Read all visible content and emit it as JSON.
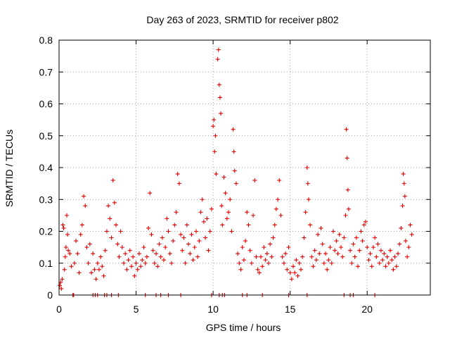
{
  "chart_data": {
    "type": "scatter",
    "title": "Day 263 of 2023, SRMTID for receiver p802",
    "xlabel": "GPS time / hours",
    "ylabel": "SRMTID / TECUs",
    "xlim": [
      0,
      24.1
    ],
    "ylim": [
      0,
      0.8
    ],
    "xticks": [
      0,
      5,
      10,
      15,
      20
    ],
    "xtick_labels": [
      "0",
      "5",
      "10",
      "15",
      "20"
    ],
    "yticks": [
      0,
      0.1,
      0.2,
      0.3,
      0.4,
      0.5,
      0.6,
      0.7,
      0.8
    ],
    "ytick_labels": [
      "0",
      "0.1",
      "0.2",
      "0.3",
      "0.4",
      "0.5",
      "0.6",
      "0.7",
      "0.8"
    ],
    "grid": true,
    "marker": "+",
    "color": "#e00000",
    "series": [
      {
        "name": "SRMTID",
        "points": [
          [
            0.05,
            0.03
          ],
          [
            0.1,
            0.04
          ],
          [
            0.15,
            0.02
          ],
          [
            0.2,
            0.05
          ],
          [
            0.25,
            0.22
          ],
          [
            0.3,
            0.21
          ],
          [
            0.35,
            0.08
          ],
          [
            0.4,
            0.12
          ],
          [
            0.45,
            0.15
          ],
          [
            0.5,
            0.25
          ],
          [
            0.55,
            0.19
          ],
          [
            0.6,
            0.14
          ],
          [
            0.7,
            0.13
          ],
          [
            0.8,
            0.09
          ],
          [
            1.0,
            0.1
          ],
          [
            1.1,
            0.17
          ],
          [
            1.2,
            0.13
          ],
          [
            1.3,
            0.07
          ],
          [
            1.4,
            0.19
          ],
          [
            1.5,
            0.22
          ],
          [
            1.6,
            0.31
          ],
          [
            1.7,
            0.28
          ],
          [
            1.8,
            0.15
          ],
          [
            1.9,
            0.1
          ],
          [
            2.0,
            0.16
          ],
          [
            2.1,
            0.07
          ],
          [
            2.2,
            0.13
          ],
          [
            2.3,
            0.08
          ],
          [
            2.4,
            0.05
          ],
          [
            2.5,
            0.1
          ],
          [
            2.6,
            0.08
          ],
          [
            2.7,
            0.12
          ],
          [
            2.8,
            0.09
          ],
          [
            2.9,
            0.06
          ],
          [
            3.0,
            0.14
          ],
          [
            3.1,
            0.2
          ],
          [
            3.2,
            0.28
          ],
          [
            3.3,
            0.24
          ],
          [
            3.4,
            0.18
          ],
          [
            3.5,
            0.36
          ],
          [
            3.6,
            0.29
          ],
          [
            3.7,
            0.22
          ],
          [
            3.8,
            0.16
          ],
          [
            3.9,
            0.12
          ],
          [
            4.0,
            0.2
          ],
          [
            4.1,
            0.15
          ],
          [
            4.2,
            0.1
          ],
          [
            4.3,
            0.13
          ],
          [
            4.4,
            0.08
          ],
          [
            4.5,
            0.11
          ],
          [
            4.6,
            0.14
          ],
          [
            4.7,
            0.09
          ],
          [
            4.8,
            0.12
          ],
          [
            4.9,
            0.06
          ],
          [
            5.0,
            0.1
          ],
          [
            5.1,
            0.08
          ],
          [
            5.2,
            0.13
          ],
          [
            5.3,
            0.09
          ],
          [
            5.4,
            0.11
          ],
          [
            5.5,
            0.15
          ],
          [
            5.6,
            0.1
          ],
          [
            5.7,
            0.12
          ],
          [
            5.8,
            0.21
          ],
          [
            5.9,
            0.32
          ],
          [
            6.0,
            0.19
          ],
          [
            6.1,
            0.14
          ],
          [
            6.2,
            0.1
          ],
          [
            6.3,
            0.13
          ],
          [
            6.4,
            0.09
          ],
          [
            6.5,
            0.16
          ],
          [
            6.6,
            0.12
          ],
          [
            6.7,
            0.18
          ],
          [
            6.8,
            0.11
          ],
          [
            6.9,
            0.15
          ],
          [
            7.0,
            0.24
          ],
          [
            7.1,
            0.2
          ],
          [
            7.2,
            0.13
          ],
          [
            7.3,
            0.1
          ],
          [
            7.4,
            0.17
          ],
          [
            7.5,
            0.22
          ],
          [
            7.6,
            0.26
          ],
          [
            7.7,
            0.38
          ],
          [
            7.8,
            0.35
          ],
          [
            7.9,
            0.19
          ],
          [
            8.0,
            0.14
          ],
          [
            8.1,
            0.18
          ],
          [
            8.2,
            0.1
          ],
          [
            8.3,
            0.22
          ],
          [
            8.4,
            0.16
          ],
          [
            8.5,
            0.13
          ],
          [
            8.6,
            0.19
          ],
          [
            8.7,
            0.11
          ],
          [
            8.8,
            0.15
          ],
          [
            8.9,
            0.2
          ],
          [
            9.0,
            0.12
          ],
          [
            9.1,
            0.17
          ],
          [
            9.2,
            0.26
          ],
          [
            9.3,
            0.3
          ],
          [
            9.4,
            0.23
          ],
          [
            9.5,
            0.18
          ],
          [
            9.6,
            0.24
          ],
          [
            9.7,
            0.14
          ],
          [
            9.8,
            0.2
          ],
          [
            9.9,
            0.27
          ],
          [
            10.0,
            0.53
          ],
          [
            10.05,
            0.55
          ],
          [
            10.1,
            0.45
          ],
          [
            10.15,
            0.5
          ],
          [
            10.2,
            0.38
          ],
          [
            10.3,
            0.74
          ],
          [
            10.35,
            0.77
          ],
          [
            10.4,
            0.66
          ],
          [
            10.45,
            0.62
          ],
          [
            10.5,
            0.57
          ],
          [
            10.55,
            0.28
          ],
          [
            10.6,
            0.22
          ],
          [
            10.7,
            0.37
          ],
          [
            10.8,
            0.32
          ],
          [
            10.9,
            0.24
          ],
          [
            11.0,
            0.26
          ],
          [
            11.1,
            0.3
          ],
          [
            11.2,
            0.2
          ],
          [
            11.3,
            0.52
          ],
          [
            11.35,
            0.45
          ],
          [
            11.4,
            0.39
          ],
          [
            11.5,
            0.35
          ],
          [
            11.6,
            0.13
          ],
          [
            11.7,
            0.1
          ],
          [
            11.8,
            0.08
          ],
          [
            11.9,
            0.15
          ],
          [
            12.0,
            0.11
          ],
          [
            12.1,
            0.17
          ],
          [
            12.2,
            0.26
          ],
          [
            12.3,
            0.22
          ],
          [
            12.4,
            0.14
          ],
          [
            12.5,
            0.1
          ],
          [
            12.6,
            0.25
          ],
          [
            12.7,
            0.36
          ],
          [
            12.8,
            0.12
          ],
          [
            12.9,
            0.08
          ],
          [
            13.0,
            0.07
          ],
          [
            13.1,
            0.12
          ],
          [
            13.2,
            0.09
          ],
          [
            13.3,
            0.15
          ],
          [
            13.4,
            0.11
          ],
          [
            13.5,
            0.13
          ],
          [
            13.6,
            0.1
          ],
          [
            13.7,
            0.16
          ],
          [
            13.8,
            0.12
          ],
          [
            13.9,
            0.18
          ],
          [
            14.0,
            0.22
          ],
          [
            14.1,
            0.27
          ],
          [
            14.2,
            0.3
          ],
          [
            14.3,
            0.36
          ],
          [
            14.4,
            0.25
          ],
          [
            14.5,
            0.12
          ],
          [
            14.6,
            0.1
          ],
          [
            14.7,
            0.13
          ],
          [
            14.8,
            0.08
          ],
          [
            14.9,
            0.15
          ],
          [
            15.0,
            0.07
          ],
          [
            15.1,
            0.05
          ],
          [
            15.2,
            0.09
          ],
          [
            15.3,
            0.07
          ],
          [
            15.4,
            0.11
          ],
          [
            15.5,
            0.06
          ],
          [
            15.6,
            0.1
          ],
          [
            15.7,
            0.08
          ],
          [
            15.8,
            0.12
          ],
          [
            15.9,
            0.18
          ],
          [
            16.0,
            0.26
          ],
          [
            16.1,
            0.4
          ],
          [
            16.15,
            0.35
          ],
          [
            16.2,
            0.3
          ],
          [
            16.3,
            0.22
          ],
          [
            16.4,
            0.12
          ],
          [
            16.5,
            0.09
          ],
          [
            16.6,
            0.14
          ],
          [
            16.7,
            0.11
          ],
          [
            16.8,
            0.19
          ],
          [
            16.9,
            0.13
          ],
          [
            17.0,
            0.21
          ],
          [
            17.1,
            0.16
          ],
          [
            17.2,
            0.1
          ],
          [
            17.3,
            0.13
          ],
          [
            17.4,
            0.08
          ],
          [
            17.5,
            0.11
          ],
          [
            17.6,
            0.15
          ],
          [
            17.7,
            0.1
          ],
          [
            17.8,
            0.2
          ],
          [
            17.9,
            0.14
          ],
          [
            18.0,
            0.17
          ],
          [
            18.1,
            0.13
          ],
          [
            18.2,
            0.19
          ],
          [
            18.3,
            0.15
          ],
          [
            18.4,
            0.12
          ],
          [
            18.5,
            0.18
          ],
          [
            18.6,
            0.25
          ],
          [
            18.65,
            0.52
          ],
          [
            18.7,
            0.43
          ],
          [
            18.75,
            0.33
          ],
          [
            18.8,
            0.27
          ],
          [
            18.9,
            0.14
          ],
          [
            19.0,
            0.1
          ],
          [
            19.1,
            0.16
          ],
          [
            19.2,
            0.12
          ],
          [
            19.3,
            0.18
          ],
          [
            19.4,
            0.09
          ],
          [
            19.5,
            0.14
          ],
          [
            19.6,
            0.2
          ],
          [
            19.7,
            0.17
          ],
          [
            19.8,
            0.22
          ],
          [
            19.9,
            0.23
          ],
          [
            20.0,
            0.15
          ],
          [
            20.1,
            0.11
          ],
          [
            20.2,
            0.13
          ],
          [
            20.3,
            0.09
          ],
          [
            20.4,
            0.15
          ],
          [
            20.5,
            0.18
          ],
          [
            20.6,
            0.12
          ],
          [
            20.7,
            0.16
          ],
          [
            20.8,
            0.1
          ],
          [
            20.9,
            0.14
          ],
          [
            21.0,
            0.11
          ],
          [
            21.1,
            0.13
          ],
          [
            21.2,
            0.09
          ],
          [
            21.3,
            0.12
          ],
          [
            21.4,
            0.1
          ],
          [
            21.5,
            0.14
          ],
          [
            21.6,
            0.11
          ],
          [
            21.7,
            0.08
          ],
          [
            21.8,
            0.12
          ],
          [
            21.9,
            0.09
          ],
          [
            22.0,
            0.13
          ],
          [
            22.1,
            0.16
          ],
          [
            22.2,
            0.21
          ],
          [
            22.3,
            0.28
          ],
          [
            22.35,
            0.38
          ],
          [
            22.4,
            0.35
          ],
          [
            22.45,
            0.31
          ],
          [
            22.5,
            0.17
          ],
          [
            22.6,
            0.12
          ],
          [
            22.7,
            0.15
          ],
          [
            22.8,
            0.22
          ],
          [
            22.9,
            0.19
          ],
          [
            0.9,
            0.0
          ],
          [
            0.95,
            0.0
          ],
          [
            2.2,
            0.0
          ],
          [
            2.35,
            0.0
          ],
          [
            2.5,
            0.0
          ],
          [
            2.95,
            0.0
          ],
          [
            3.1,
            0.0
          ],
          [
            3.4,
            0.0
          ],
          [
            3.85,
            0.0
          ],
          [
            5.6,
            0.0
          ],
          [
            6.3,
            0.0
          ],
          [
            6.6,
            0.0
          ],
          [
            7.1,
            0.0
          ],
          [
            7.9,
            0.0
          ],
          [
            9.9,
            0.0
          ],
          [
            10.4,
            0.0
          ],
          [
            10.6,
            0.0
          ],
          [
            10.75,
            0.0
          ],
          [
            11.9,
            0.0
          ],
          [
            12.2,
            0.0
          ],
          [
            13.2,
            0.0
          ],
          [
            14.9,
            0.0
          ],
          [
            16.1,
            0.0
          ],
          [
            18.5,
            0.0
          ],
          [
            18.9,
            0.0
          ],
          [
            19.1,
            0.0
          ],
          [
            20.5,
            0.0
          ]
        ]
      }
    ]
  }
}
